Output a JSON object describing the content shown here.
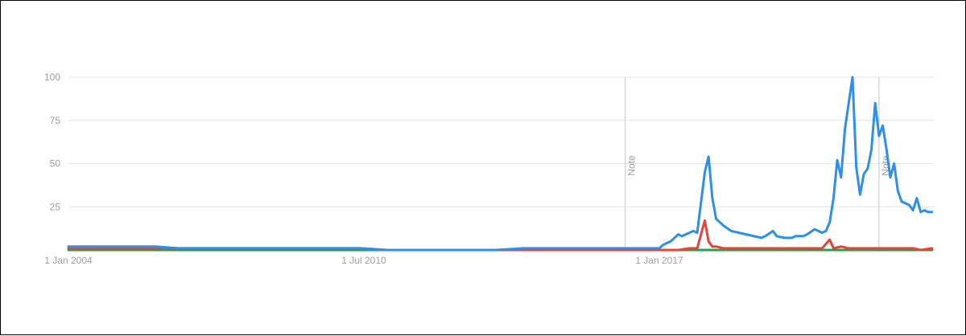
{
  "colors": {
    "blue": "#2d8fe6",
    "red": "#e8433b",
    "green": "#2e9d4a",
    "grid": "#e6e6e6",
    "note_line": "#cfcfcf",
    "text": "#9e9e9e"
  },
  "chart_data": {
    "type": "line",
    "title": "",
    "xlabel": "",
    "ylabel": "",
    "ylim": [
      0,
      100
    ],
    "xlim": [
      "2004-01",
      "2022-08"
    ],
    "grid": true,
    "legend": "none",
    "y_ticks": [
      "25",
      "50",
      "75",
      "100"
    ],
    "x_ticks": [
      {
        "date": "2004-01",
        "label": "1 Jan 2004"
      },
      {
        "date": "2010-07",
        "label": "1 Jul 2010"
      },
      {
        "date": "2017-01",
        "label": "1 Jan 2017"
      }
    ],
    "notes": [
      {
        "date": "2016-04",
        "label": "Note"
      },
      {
        "date": "2021-11",
        "label": "Note"
      }
    ],
    "series": [
      {
        "color": "blue",
        "points": [
          [
            "2004-01",
            2
          ],
          [
            "2005-12",
            2
          ],
          [
            "2006-06",
            1
          ],
          [
            "2008-01",
            1
          ],
          [
            "2009-06",
            1
          ],
          [
            "2010-06",
            1
          ],
          [
            "2011-01",
            0
          ],
          [
            "2012-06",
            0
          ],
          [
            "2013-06",
            0
          ],
          [
            "2014-01",
            1
          ],
          [
            "2015-01",
            1
          ],
          [
            "2016-01",
            1
          ],
          [
            "2016-06",
            1
          ],
          [
            "2017-01",
            1
          ],
          [
            "2017-02",
            3
          ],
          [
            "2017-04",
            5
          ],
          [
            "2017-06",
            9
          ],
          [
            "2017-07",
            8
          ],
          [
            "2017-09",
            10
          ],
          [
            "2017-10",
            11
          ],
          [
            "2017-11",
            10
          ],
          [
            "2018-01",
            45
          ],
          [
            "2018-02",
            54
          ],
          [
            "2018-03",
            30
          ],
          [
            "2018-04",
            18
          ],
          [
            "2018-06",
            14
          ],
          [
            "2018-08",
            11
          ],
          [
            "2018-10",
            10
          ],
          [
            "2018-12",
            9
          ],
          [
            "2019-02",
            8
          ],
          [
            "2019-04",
            7
          ],
          [
            "2019-05",
            8
          ],
          [
            "2019-07",
            11
          ],
          [
            "2019-08",
            8
          ],
          [
            "2019-10",
            7
          ],
          [
            "2019-12",
            7
          ],
          [
            "2020-01",
            8
          ],
          [
            "2020-03",
            8
          ],
          [
            "2020-04",
            9
          ],
          [
            "2020-06",
            12
          ],
          [
            "2020-08",
            10
          ],
          [
            "2020-09",
            11
          ],
          [
            "2020-10",
            16
          ],
          [
            "2020-11",
            30
          ],
          [
            "2020-12",
            52
          ],
          [
            "2021-01",
            42
          ],
          [
            "2021-02",
            70
          ],
          [
            "2021-04",
            100
          ],
          [
            "2021-05",
            48
          ],
          [
            "2021-06",
            32
          ],
          [
            "2021-07",
            44
          ],
          [
            "2021-08",
            47
          ],
          [
            "2021-09",
            58
          ],
          [
            "2021-10",
            85
          ],
          [
            "2021-11",
            66
          ],
          [
            "2021-12",
            72
          ],
          [
            "2022-01",
            58
          ],
          [
            "2022-02",
            42
          ],
          [
            "2022-03",
            50
          ],
          [
            "2022-04",
            34
          ],
          [
            "2022-05",
            28
          ],
          [
            "2022-06",
            27
          ],
          [
            "2022-07",
            26
          ],
          [
            "2022-08",
            23
          ],
          [
            "2022-09",
            30
          ],
          [
            "2022-10",
            22
          ],
          [
            "2022-11",
            23
          ],
          [
            "2022-12",
            22
          ],
          [
            "2023-01",
            22
          ]
        ]
      },
      {
        "color": "red",
        "points": [
          [
            "2004-01",
            1
          ],
          [
            "2007-06",
            1
          ],
          [
            "2010-06",
            1
          ],
          [
            "2011-01",
            0
          ],
          [
            "2013-01",
            0
          ],
          [
            "2016-06",
            0
          ],
          [
            "2017-06",
            0
          ],
          [
            "2017-09",
            1
          ],
          [
            "2017-11",
            1
          ],
          [
            "2018-01",
            17
          ],
          [
            "2018-02",
            5
          ],
          [
            "2018-03",
            2
          ],
          [
            "2018-04",
            2
          ],
          [
            "2018-06",
            1
          ],
          [
            "2019-06",
            1
          ],
          [
            "2020-06",
            1
          ],
          [
            "2020-08",
            1
          ],
          [
            "2020-10",
            6
          ],
          [
            "2020-11",
            1
          ],
          [
            "2021-01",
            2
          ],
          [
            "2021-03",
            1
          ],
          [
            "2021-05",
            1
          ],
          [
            "2022-06",
            1
          ],
          [
            "2022-08",
            1
          ],
          [
            "2022-10",
            0
          ],
          [
            "2023-01",
            1
          ]
        ]
      },
      {
        "color": "green",
        "points": [
          [
            "2004-01",
            0
          ],
          [
            "2023-01",
            0
          ]
        ]
      }
    ]
  }
}
